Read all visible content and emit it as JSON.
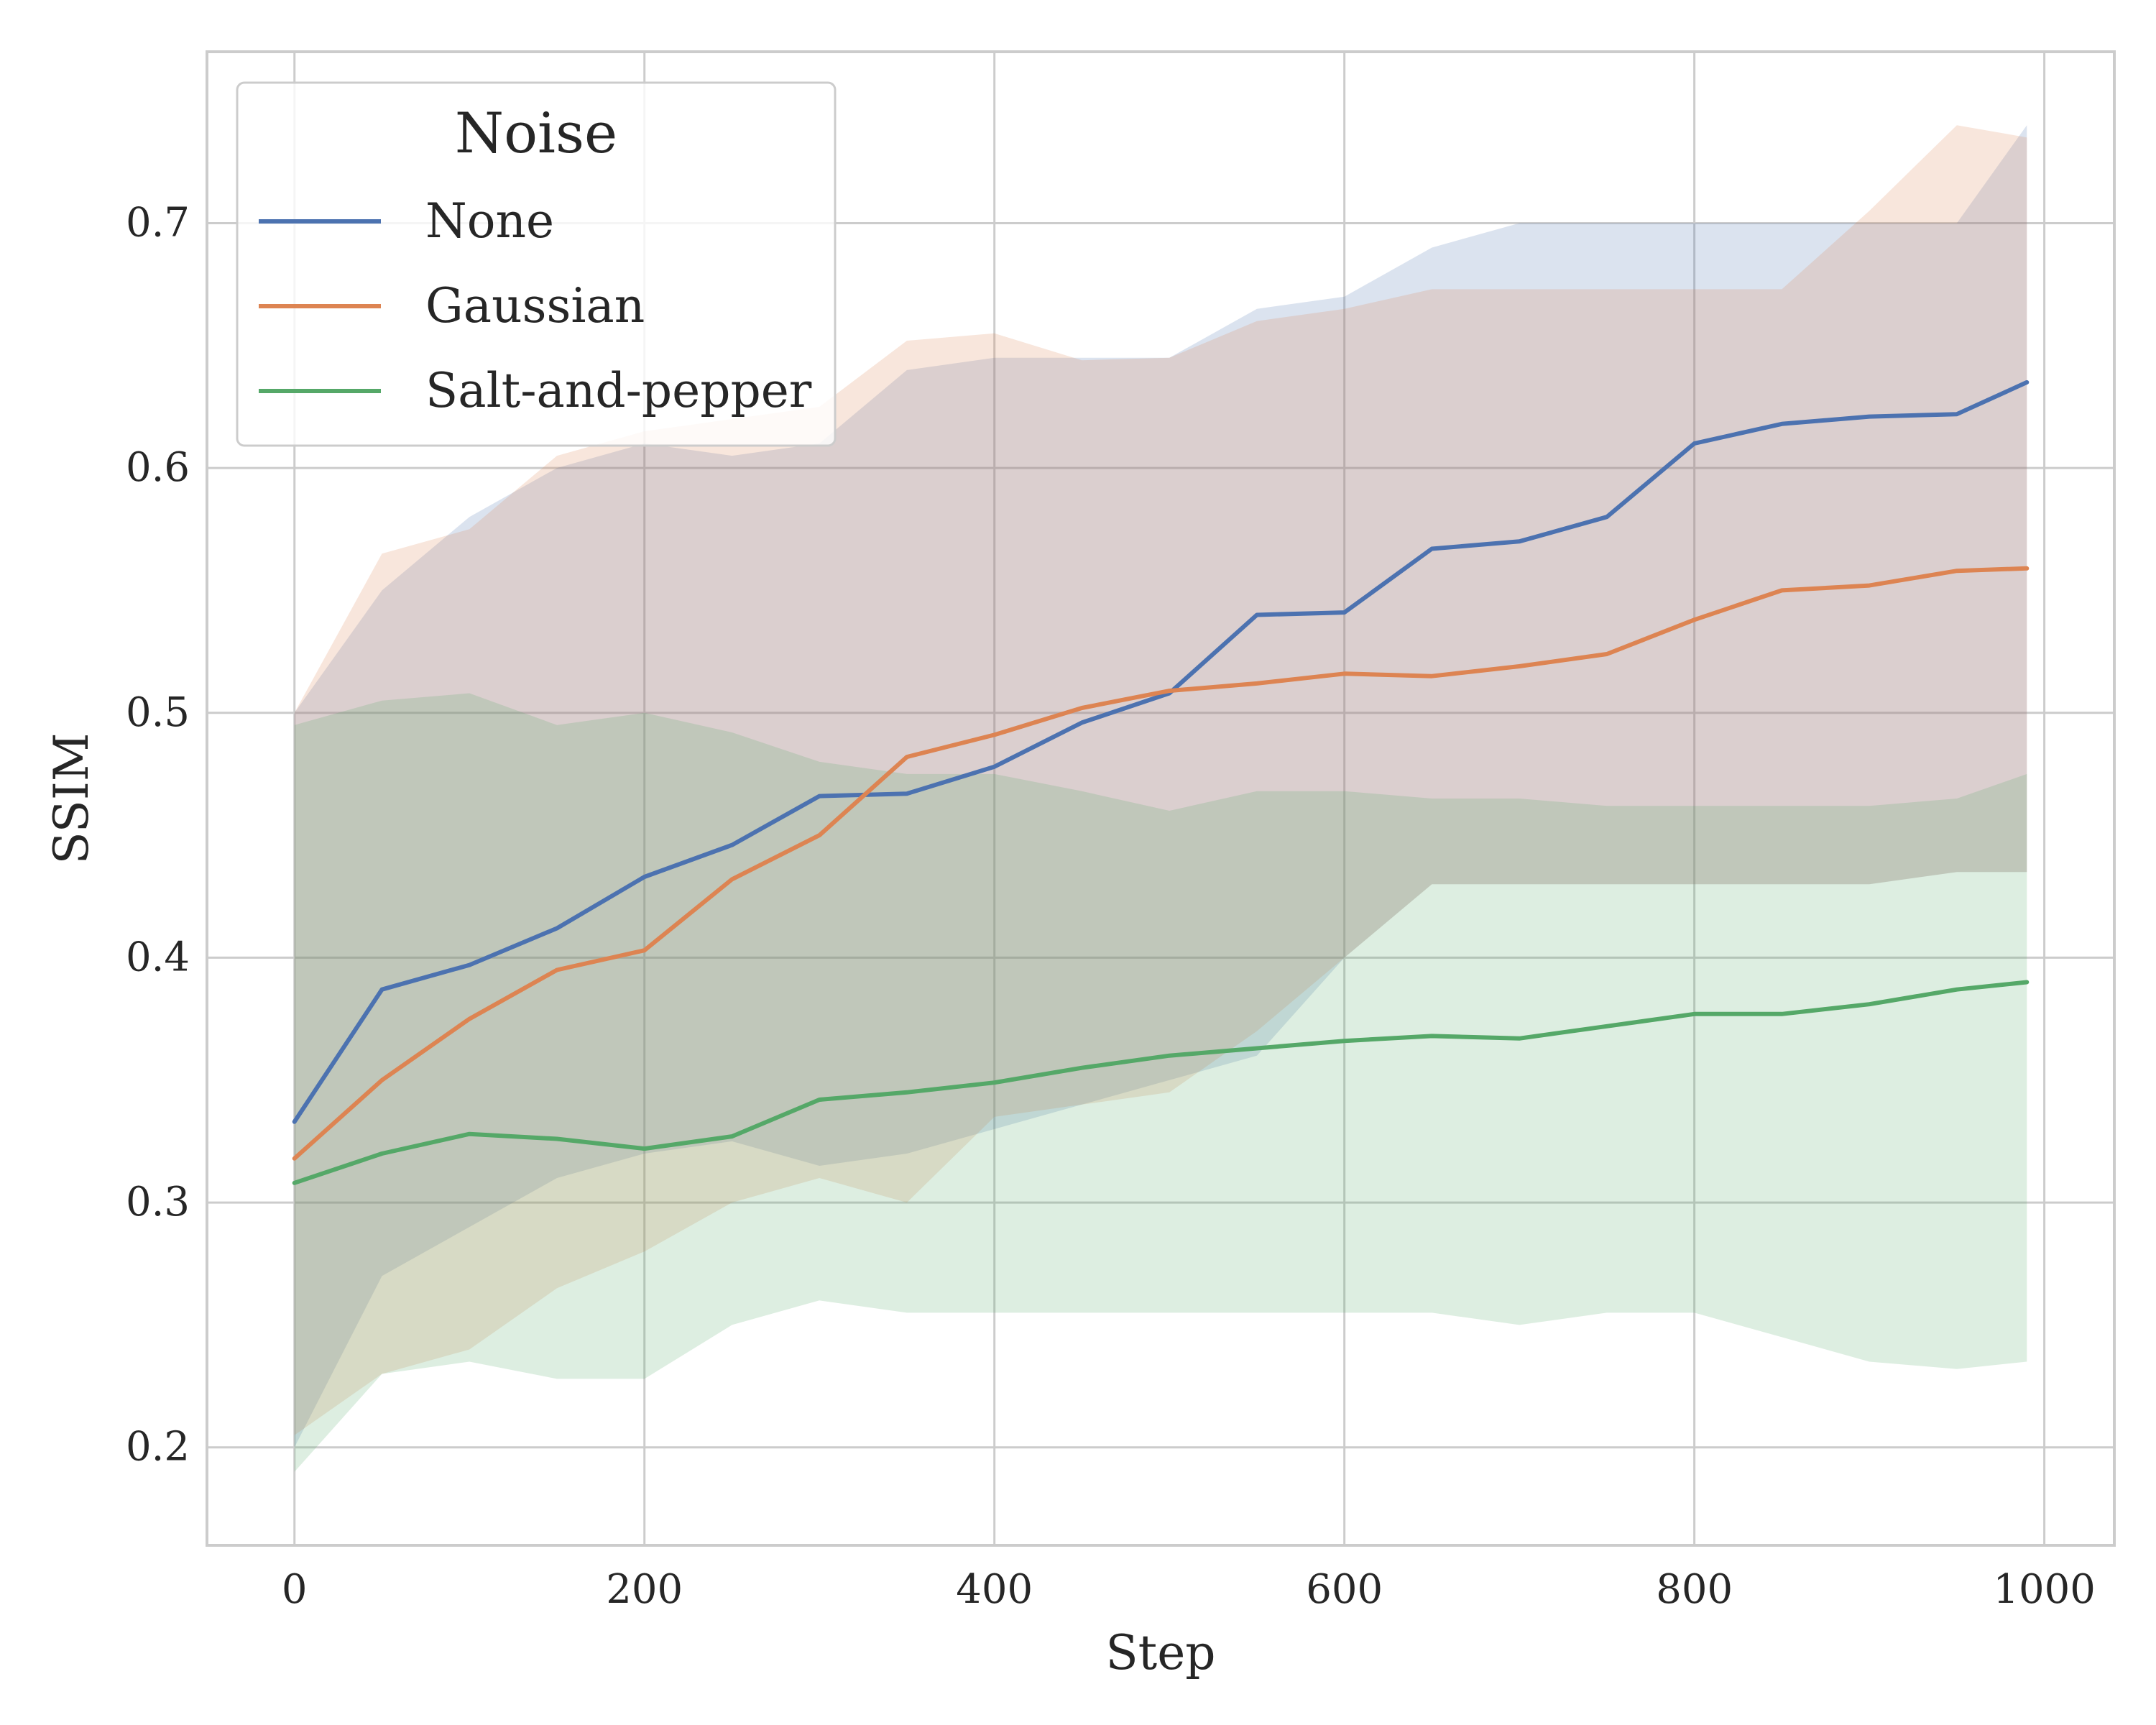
{
  "chart_data": {
    "type": "line",
    "xlabel": "Step",
    "ylabel": "SSIM",
    "xlim": [
      -50,
      1040
    ],
    "ylim": [
      0.16,
      0.77
    ],
    "xticks": [
      0,
      200,
      400,
      600,
      800,
      1000
    ],
    "xtick_labels": [
      "0",
      "200",
      "400",
      "600",
      "800",
      "1000"
    ],
    "yticks": [
      0.2,
      0.3,
      0.4,
      0.5,
      0.6,
      0.7
    ],
    "ytick_labels": [
      "0.2",
      "0.3",
      "0.4",
      "0.5",
      "0.6",
      "0.7"
    ],
    "grid": true,
    "legend": {
      "title": "Noise",
      "position": "upper-left"
    },
    "x": [
      0,
      50,
      100,
      150,
      200,
      250,
      300,
      350,
      400,
      450,
      500,
      550,
      600,
      650,
      700,
      750,
      800,
      850,
      900,
      950,
      990
    ],
    "series": [
      {
        "name": "None",
        "color": "#4c72b0",
        "values": [
          0.333,
          0.387,
          0.397,
          0.412,
          0.433,
          0.446,
          0.466,
          0.467,
          0.478,
          0.496,
          0.508,
          0.54,
          0.541,
          0.567,
          0.57,
          0.58,
          0.61,
          0.618,
          0.621,
          0.622,
          0.635
        ],
        "band_lower": [
          0.2,
          0.27,
          0.29,
          0.31,
          0.32,
          0.325,
          0.315,
          0.32,
          0.33,
          0.34,
          0.35,
          0.36,
          0.4,
          0.43,
          0.43,
          0.43,
          0.43,
          0.43,
          0.43,
          0.435,
          0.435
        ],
        "band_upper": [
          0.5,
          0.55,
          0.58,
          0.6,
          0.61,
          0.605,
          0.61,
          0.64,
          0.645,
          0.645,
          0.645,
          0.665,
          0.67,
          0.69,
          0.7,
          0.7,
          0.7,
          0.7,
          0.7,
          0.7,
          0.74
        ]
      },
      {
        "name": "Gaussian",
        "color": "#dd8452",
        "values": [
          0.318,
          0.35,
          0.375,
          0.395,
          0.403,
          0.432,
          0.45,
          0.482,
          0.491,
          0.502,
          0.509,
          0.512,
          0.516,
          0.515,
          0.519,
          0.524,
          0.538,
          0.55,
          0.552,
          0.558,
          0.559
        ],
        "band_lower": [
          0.205,
          0.23,
          0.24,
          0.265,
          0.28,
          0.3,
          0.31,
          0.3,
          0.335,
          0.34,
          0.345,
          0.37,
          0.4,
          0.43,
          0.43,
          0.43,
          0.43,
          0.43,
          0.43,
          0.435,
          0.435
        ],
        "band_upper": [
          0.5,
          0.565,
          0.575,
          0.605,
          0.615,
          0.62,
          0.625,
          0.652,
          0.655,
          0.644,
          0.645,
          0.66,
          0.665,
          0.673,
          0.673,
          0.673,
          0.673,
          0.673,
          0.705,
          0.74,
          0.735
        ]
      },
      {
        "name": "Salt-and-pepper",
        "color": "#55a868",
        "values": [
          0.308,
          0.32,
          0.328,
          0.326,
          0.322,
          0.327,
          0.342,
          0.345,
          0.349,
          0.355,
          0.36,
          0.363,
          0.366,
          0.368,
          0.367,
          0.372,
          0.377,
          0.377,
          0.381,
          0.387,
          0.39
        ],
        "band_lower": [
          0.19,
          0.23,
          0.235,
          0.228,
          0.228,
          0.25,
          0.26,
          0.255,
          0.255,
          0.255,
          0.255,
          0.255,
          0.255,
          0.255,
          0.25,
          0.255,
          0.255,
          0.245,
          0.235,
          0.232,
          0.235
        ],
        "band_upper": [
          0.495,
          0.505,
          0.508,
          0.495,
          0.5,
          0.492,
          0.48,
          0.475,
          0.475,
          0.468,
          0.46,
          0.468,
          0.468,
          0.465,
          0.465,
          0.462,
          0.462,
          0.462,
          0.462,
          0.465,
          0.475
        ]
      }
    ]
  }
}
